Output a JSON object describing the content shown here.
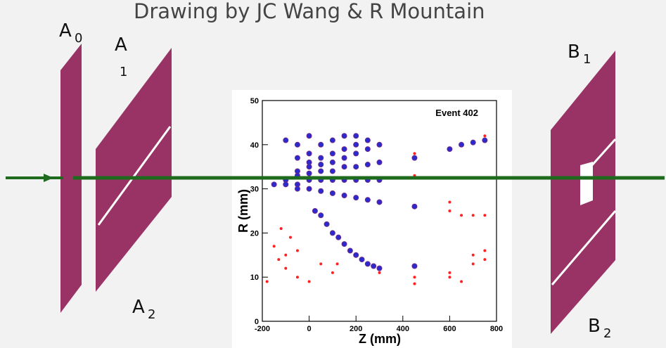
{
  "title": "Drawing by JC Wang & R Mountain",
  "labels": [
    {
      "text": "A",
      "sub": "0"
    },
    {
      "text": "A",
      "sub": "1"
    },
    {
      "text": "A",
      "sub": "2"
    },
    {
      "text": "B",
      "sub": "1"
    },
    {
      "text": "B",
      "sub": "2"
    }
  ],
  "chart_data": {
    "type": "scatter",
    "title": "Event 402",
    "xlabel": "Z (mm)",
    "ylabel": "R (mm)",
    "xlim": [
      -200,
      800
    ],
    "ylim": [
      0,
      50
    ],
    "xticks": [
      -200,
      0,
      200,
      400,
      600,
      800
    ],
    "yticks": [
      0,
      10,
      20,
      30,
      40,
      50
    ],
    "series": [
      {
        "color": "#2a2ad0",
        "x": [
          -100,
          -50,
          0,
          -50,
          0,
          50,
          100,
          150,
          200,
          0,
          50,
          100,
          150,
          200,
          250,
          -50,
          0,
          50,
          100,
          150,
          200,
          250,
          300,
          -100,
          -50,
          0,
          50,
          100,
          150,
          200,
          250,
          300,
          -150,
          -100,
          -50,
          0,
          50,
          100,
          150,
          200,
          250,
          300,
          -50,
          0,
          50,
          100,
          150,
          200,
          250,
          300,
          25,
          50,
          75,
          100,
          125,
          150,
          175,
          200,
          225,
          250,
          275,
          300,
          450,
          450,
          450,
          600,
          650,
          700,
          750
        ],
        "y": [
          41,
          40,
          42,
          37,
          38,
          40,
          41,
          42,
          42,
          36,
          37,
          38,
          39,
          40,
          41,
          34,
          35,
          35.5,
          36,
          37,
          38,
          39,
          40,
          32,
          33,
          33.5,
          34,
          34,
          35,
          35,
          35.5,
          36,
          31,
          31,
          31,
          32,
          32,
          32,
          32,
          32,
          32,
          32,
          30,
          30,
          29.5,
          29,
          28.5,
          28,
          27.5,
          27,
          25,
          24,
          22,
          20,
          19,
          17.5,
          16,
          15,
          14,
          13,
          12.5,
          12,
          26,
          37,
          12.5,
          39,
          40,
          40.5,
          41
        ]
      },
      {
        "color": "#ff2020",
        "x": [
          -180,
          -150,
          -130,
          -120,
          -100,
          -100,
          -80,
          -50,
          -50,
          0,
          50,
          100,
          120,
          300,
          450,
          450,
          450,
          450,
          600,
          600,
          600,
          600,
          650,
          650,
          700,
          700,
          700,
          750,
          750,
          750,
          750
        ],
        "y": [
          9,
          17,
          14,
          21,
          15,
          12,
          19,
          16,
          10,
          9,
          13,
          11,
          13,
          11,
          10,
          8.5,
          38,
          33,
          27,
          25,
          10,
          11,
          9,
          24,
          24,
          15,
          13,
          24,
          16,
          14,
          42
        ]
      }
    ]
  }
}
